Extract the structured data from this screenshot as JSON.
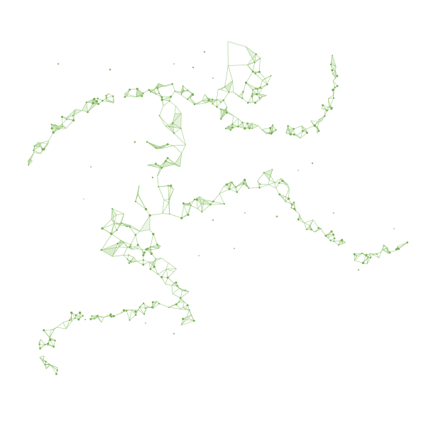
{
  "scene": {
    "subject": "low-poly-wireframe-running-figure",
    "background_color": "#ffffff",
    "line_color": "#8cbf6b",
    "node_color": "#7aae55",
    "fill_color": "#cfe6bf"
  }
}
